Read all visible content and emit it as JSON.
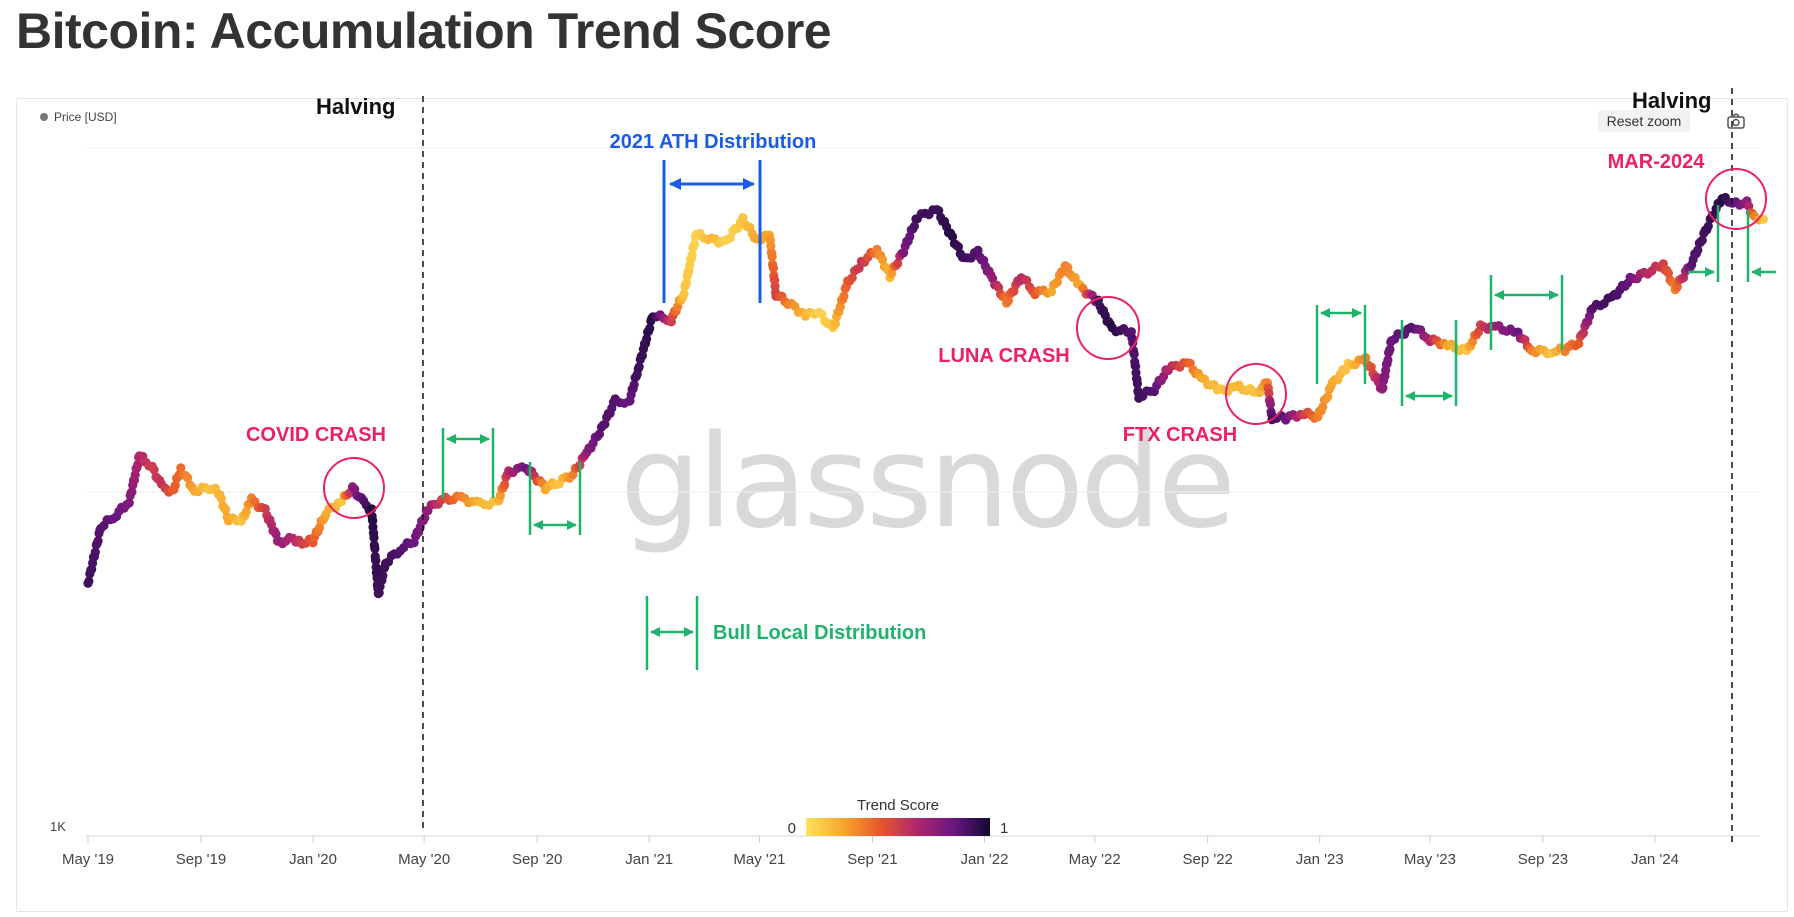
{
  "title": "Bitcoin: Accumulation Trend Score",
  "legend": {
    "series_label": "Price [USD]"
  },
  "controls": {
    "reset_zoom": "Reset zoom",
    "camera_icon": "camera-icon"
  },
  "watermark": "glassnode",
  "colorbar": {
    "title": "Trend Score",
    "min_label": "0",
    "max_label": "1",
    "colors": [
      "#fde25a",
      "#f7a72c",
      "#e8582b",
      "#b2266b",
      "#6a1680",
      "#110a32"
    ]
  },
  "colors": {
    "green": "#1fb36b",
    "blue": "#1a5ce8",
    "pink": "#ee1f65",
    "black": "#111111"
  },
  "chart_data": {
    "type": "scatter",
    "title": "Bitcoin: Accumulation Trend Score",
    "xlabel": "",
    "ylabel": "",
    "y_scale": "log",
    "y_tick_labels": [
      "1K"
    ],
    "x_ticks": [
      "May '19",
      "Sep '19",
      "Jan '20",
      "May '20",
      "Sep '20",
      "Jan '21",
      "May '21",
      "Sep '21",
      "Jan '22",
      "May '22",
      "Sep '22",
      "Jan '23",
      "May '23",
      "Sep '23",
      "Jan '24"
    ],
    "series": [
      {
        "name": "Price [USD]",
        "points": [
          [
            "2019-05-01",
            5400,
            0.9
          ],
          [
            "2019-05-15",
            7900,
            0.85
          ],
          [
            "2019-06-01",
            8600,
            0.8
          ],
          [
            "2019-06-15",
            9400,
            0.75
          ],
          [
            "2019-06-26",
            12800,
            0.6
          ],
          [
            "2019-07-10",
            11800,
            0.5
          ],
          [
            "2019-07-20",
            10400,
            0.55
          ],
          [
            "2019-08-01",
            10000,
            0.4
          ],
          [
            "2019-08-10",
            11700,
            0.35
          ],
          [
            "2019-08-25",
            10100,
            0.2
          ],
          [
            "2019-09-10",
            10300,
            0.1
          ],
          [
            "2019-09-20",
            10000,
            0.15
          ],
          [
            "2019-10-01",
            8300,
            0.2
          ],
          [
            "2019-10-15",
            8200,
            0.1
          ],
          [
            "2019-10-26",
            9500,
            0.3
          ],
          [
            "2019-11-10",
            8800,
            0.5
          ],
          [
            "2019-11-25",
            7100,
            0.7
          ],
          [
            "2019-12-10",
            7300,
            0.6
          ],
          [
            "2019-12-20",
            7100,
            0.5
          ],
          [
            "2020-01-01",
            7200,
            0.4
          ],
          [
            "2020-01-15",
            8700,
            0.2
          ],
          [
            "2020-02-01",
            9400,
            0.1
          ],
          [
            "2020-02-13",
            10300,
            0.7
          ],
          [
            "2020-02-25",
            9300,
            0.85
          ],
          [
            "2020-03-05",
            8800,
            0.95
          ],
          [
            "2020-03-12",
            5000,
            0.9
          ],
          [
            "2020-03-20",
            6200,
            0.9
          ],
          [
            "2020-04-05",
            6800,
            0.85
          ],
          [
            "2020-04-20",
            7200,
            0.8
          ],
          [
            "2020-05-05",
            8900,
            0.7
          ],
          [
            "2020-05-20",
            9500,
            0.5
          ],
          [
            "2020-06-10",
            9600,
            0.3
          ],
          [
            "2020-07-01",
            9200,
            0.15
          ],
          [
            "2020-07-20",
            9300,
            0.1
          ],
          [
            "2020-08-01",
            11500,
            0.6
          ],
          [
            "2020-08-20",
            11800,
            0.8
          ],
          [
            "2020-09-10",
            10300,
            0.2
          ],
          [
            "2020-09-25",
            10700,
            0.1
          ],
          [
            "2020-10-10",
            11300,
            0.3
          ],
          [
            "2020-10-25",
            13000,
            0.7
          ],
          [
            "2020-11-10",
            15300,
            0.85
          ],
          [
            "2020-11-25",
            18500,
            0.85
          ],
          [
            "2020-12-10",
            18300,
            0.8
          ],
          [
            "2020-12-20",
            23000,
            0.9
          ],
          [
            "2021-01-05",
            33000,
            0.95
          ],
          [
            "2021-01-25",
            32000,
            0.5
          ],
          [
            "2021-02-08",
            38500,
            0.1
          ],
          [
            "2021-02-21",
            57000,
            0.05
          ],
          [
            "2021-03-10",
            55000,
            0.15
          ],
          [
            "2021-03-25",
            54000,
            0.05
          ],
          [
            "2021-04-13",
            63000,
            0.1
          ],
          [
            "2021-04-28",
            55000,
            0.2
          ],
          [
            "2021-05-12",
            57000,
            0.2
          ],
          [
            "2021-05-19",
            38000,
            0.5
          ],
          [
            "2021-06-01",
            36000,
            0.3
          ],
          [
            "2021-06-20",
            33000,
            0.15
          ],
          [
            "2021-07-05",
            33500,
            0.05
          ],
          [
            "2021-07-20",
            30000,
            0.1
          ],
          [
            "2021-08-05",
            41000,
            0.4
          ],
          [
            "2021-08-20",
            47000,
            0.55
          ],
          [
            "2021-09-06",
            51500,
            0.3
          ],
          [
            "2021-09-20",
            43000,
            0.15
          ],
          [
            "2021-10-05",
            51000,
            0.75
          ],
          [
            "2021-10-20",
            64000,
            0.9
          ],
          [
            "2021-11-10",
            67500,
            0.9
          ],
          [
            "2021-11-25",
            57000,
            0.95
          ],
          [
            "2021-12-10",
            48000,
            0.9
          ],
          [
            "2021-12-25",
            50500,
            0.85
          ],
          [
            "2022-01-10",
            42000,
            0.7
          ],
          [
            "2022-01-25",
            36000,
            0.3
          ],
          [
            "2022-02-10",
            43000,
            0.6
          ],
          [
            "2022-02-25",
            38500,
            0.4
          ],
          [
            "2022-03-15",
            39000,
            0.2
          ],
          [
            "2022-03-30",
            46000,
            0.3
          ],
          [
            "2022-04-15",
            40000,
            0.2
          ],
          [
            "2022-05-05",
            36000,
            0.9
          ],
          [
            "2022-05-20",
            30000,
            0.95
          ],
          [
            "2022-06-10",
            29500,
            0.85
          ],
          [
            "2022-06-18",
            19000,
            0.9
          ],
          [
            "2022-07-05",
            20000,
            0.85
          ],
          [
            "2022-07-20",
            23000,
            0.6
          ],
          [
            "2022-08-10",
            24000,
            0.4
          ],
          [
            "2022-08-25",
            21500,
            0.2
          ],
          [
            "2022-09-15",
            19800,
            0.1
          ],
          [
            "2022-10-05",
            20300,
            0.15
          ],
          [
            "2022-10-25",
            19500,
            0.1
          ],
          [
            "2022-11-05",
            21000,
            0.3
          ],
          [
            "2022-11-10",
            16500,
            0.9
          ],
          [
            "2022-11-25",
            16500,
            0.8
          ],
          [
            "2022-12-15",
            17000,
            0.5
          ],
          [
            "2022-12-30",
            16600,
            0.3
          ],
          [
            "2023-01-15",
            20800,
            0.2
          ],
          [
            "2023-02-01",
            23500,
            0.1
          ],
          [
            "2023-02-20",
            24500,
            0.3
          ],
          [
            "2023-03-10",
            20000,
            0.7
          ],
          [
            "2023-03-20",
            28000,
            0.8
          ],
          [
            "2023-04-14",
            30500,
            0.85
          ],
          [
            "2023-05-01",
            28000,
            0.6
          ],
          [
            "2023-05-20",
            27000,
            0.2
          ],
          [
            "2023-06-10",
            25800,
            0.1
          ],
          [
            "2023-06-25",
            30500,
            0.5
          ],
          [
            "2023-07-15",
            30300,
            0.7
          ],
          [
            "2023-08-05",
            29200,
            0.8
          ],
          [
            "2023-08-20",
            26000,
            0.3
          ],
          [
            "2023-09-10",
            25800,
            0.1
          ],
          [
            "2023-09-25",
            26200,
            0.3
          ],
          [
            "2023-10-10",
            27500,
            0.4
          ],
          [
            "2023-10-25",
            34500,
            0.85
          ],
          [
            "2023-11-15",
            37000,
            0.9
          ],
          [
            "2023-12-05",
            42000,
            0.8
          ],
          [
            "2023-12-20",
            43500,
            0.6
          ],
          [
            "2024-01-10",
            46500,
            0.5
          ],
          [
            "2024-01-23",
            39500,
            0.3
          ],
          [
            "2024-02-10",
            47000,
            0.85
          ],
          [
            "2024-02-28",
            61000,
            0.9
          ],
          [
            "2024-03-14",
            73000,
            0.95
          ],
          [
            "2024-03-25",
            70000,
            0.85
          ],
          [
            "2024-04-10",
            70500,
            0.7
          ],
          [
            "2024-04-18",
            63500,
            0.3
          ],
          [
            "2024-04-28",
            63000,
            0.1
          ]
        ]
      }
    ],
    "colorbar_range": [
      0,
      1
    ]
  },
  "annotations": {
    "halving_1": "Halving",
    "halving_2": "Halving",
    "ath": "2021 ATH Distribution",
    "covid": "COVID CRASH",
    "luna": "LUNA CRASH",
    "ftx": "FTX CRASH",
    "mar2024": "MAR-2024",
    "bull_local": "Bull Local Distribution"
  }
}
